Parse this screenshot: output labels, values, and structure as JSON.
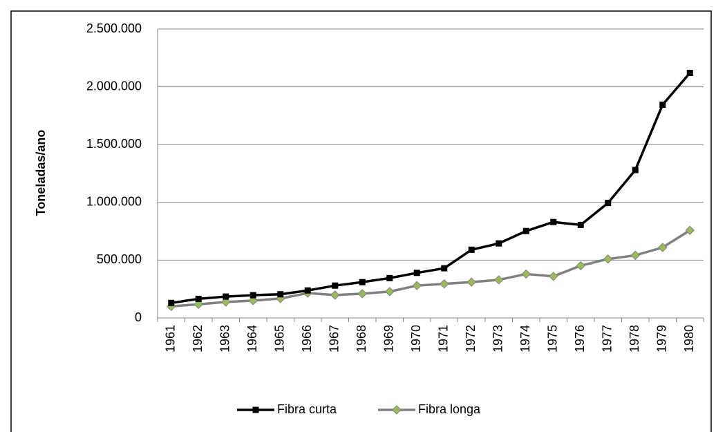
{
  "chart_data": {
    "type": "line",
    "y_label": "Toneladas/ano",
    "categories": [
      "1961",
      "1962",
      "1963",
      "1964",
      "1965",
      "1966",
      "1967",
      "1968",
      "1969",
      "1970",
      "1971",
      "1972",
      "1973",
      "1974",
      "1975",
      "1976",
      "1977",
      "1978",
      "1979",
      "1980"
    ],
    "series": [
      {
        "name": "Fibra curta",
        "color": "#000000",
        "marker": "square",
        "values": [
          130000,
          165000,
          185000,
          197000,
          205000,
          238000,
          280000,
          310000,
          345000,
          390000,
          430000,
          590000,
          645000,
          752000,
          830000,
          805000,
          995000,
          1280000,
          1845000,
          2120000
        ]
      },
      {
        "name": "Fibra longa",
        "color": "#808080",
        "marker_color": "#9bbb59",
        "marker": "diamond",
        "values": [
          100000,
          118000,
          138000,
          150000,
          168000,
          215000,
          198000,
          210000,
          228000,
          280000,
          295000,
          310000,
          330000,
          380000,
          360000,
          452000,
          510000,
          542000,
          610000,
          758000
        ]
      }
    ],
    "ylim": [
      0,
      2500000
    ],
    "yticks": [
      0,
      {
        "value": 500000,
        "label": "500.000"
      },
      {
        "value": 1000000,
        "label": "1.000.000"
      },
      {
        "value": 1500000,
        "label": "1.500.000"
      },
      {
        "value": 2000000,
        "label": "2.000.000"
      },
      {
        "value": 2500000,
        "label": "2.500.000"
      }
    ],
    "grid": true,
    "legend": "bottom"
  }
}
